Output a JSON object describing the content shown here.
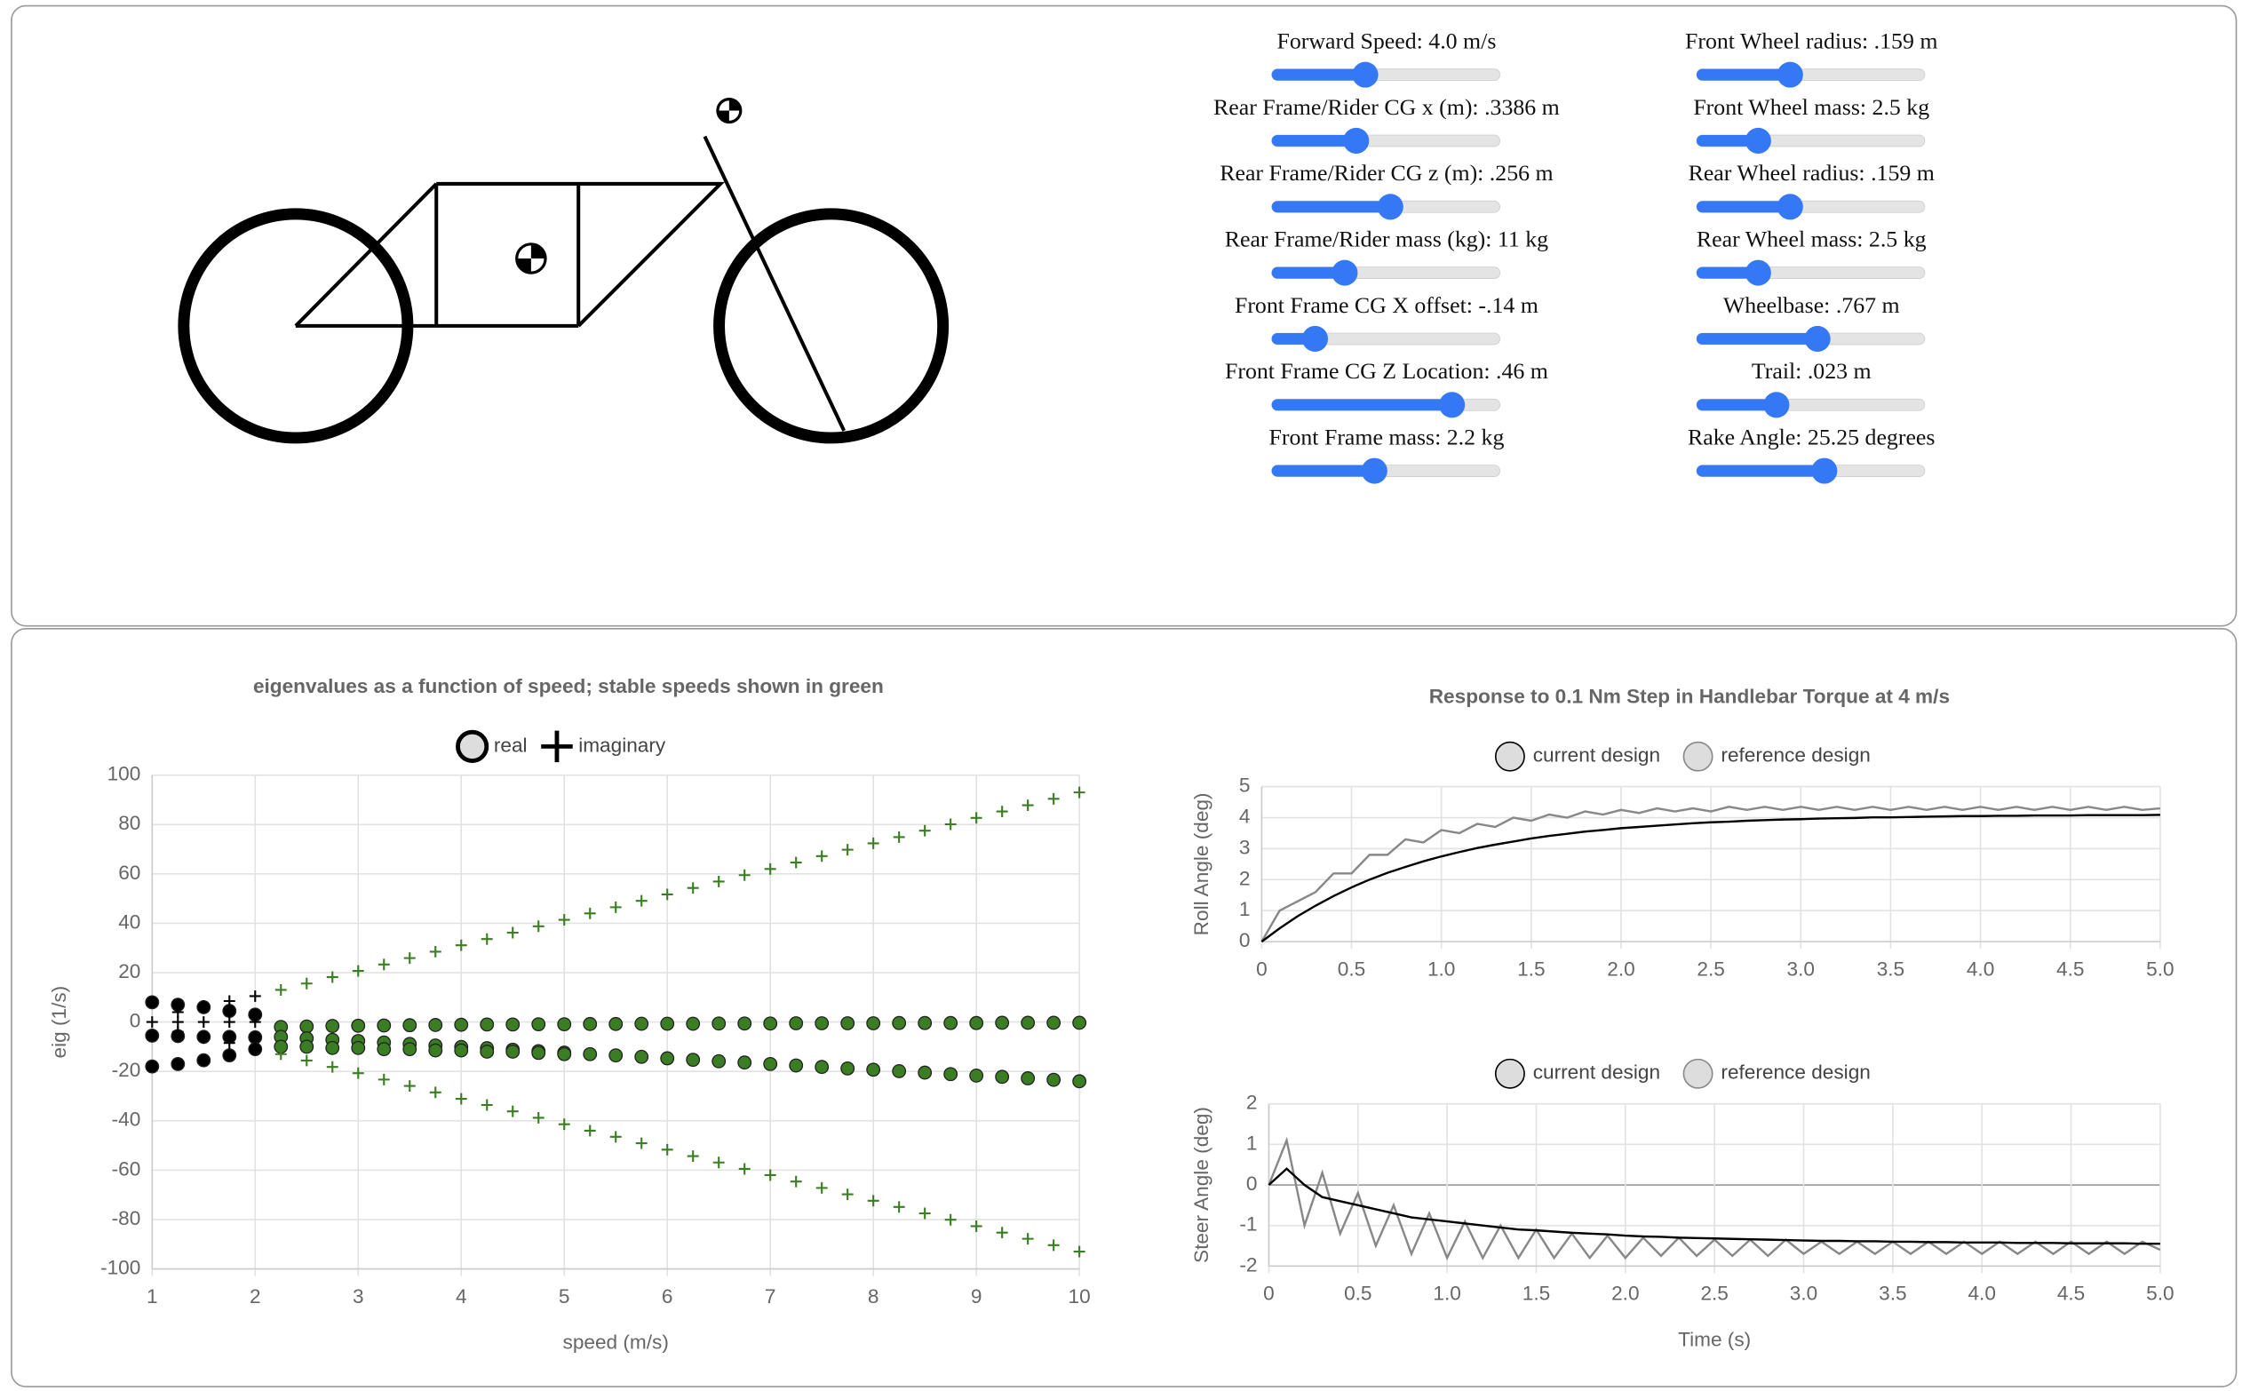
{
  "controls": [
    "Forward Speed: 4.0 m/s",
    "Rear Frame/Rider CG x (m): .3386 m",
    "Rear Frame/Rider CG z (m): .256 m",
    "Rear Frame/Rider mass (kg): 11 kg",
    "Front Frame CG X offset: -.14 m",
    "Front Frame CG Z Location: .46 m",
    "Front Frame mass: 2.2 kg",
    "Front Wheel radius: .159 m",
    "Front Wheel mass: 2.5 kg",
    "Rear Wheel radius: .159 m",
    "Rear Wheel mass: 2.5 kg",
    "Wheelbase: .767 m",
    "Trail: .023 m",
    "Rake Angle: 25.25 degrees"
  ],
  "eigen_chart": {
    "type": "scatter",
    "title": "eigenvalues as a function of speed; stable speeds shown in green",
    "x_label": "speed (m/s)",
    "y_label": "eig (1/s)",
    "legend": [
      {
        "name": "real",
        "marker": "circle"
      },
      {
        "name": "imaginary",
        "marker": "plus"
      }
    ],
    "xlim": [
      1,
      10
    ],
    "xticks": [
      1,
      2,
      3,
      4,
      5,
      6,
      7,
      8,
      9,
      10
    ],
    "ylim": [
      -100,
      100
    ],
    "yticks": [
      -100,
      -80,
      -60,
      -40,
      -20,
      0,
      20,
      40,
      60,
      80,
      100
    ],
    "grid": true,
    "series": [
      {
        "marker": "circle",
        "color": "#000000",
        "x": [
          1,
          1.25,
          1.5,
          1.75,
          2
        ],
        "values": [
          8,
          7,
          6,
          4.5,
          3
        ]
      },
      {
        "marker": "circle",
        "color": "#000000",
        "x": [
          1,
          1.25,
          1.5,
          1.75,
          2
        ],
        "values": [
          -5.5,
          -5.7,
          -6,
          -6,
          -6.2
        ]
      },
      {
        "marker": "circle",
        "color": "#000000",
        "x": [
          1,
          1.25,
          1.5,
          1.75,
          2
        ],
        "values": [
          -18,
          -17,
          -15.5,
          -13.5,
          -11
        ]
      },
      {
        "marker": "plus",
        "color": "#000000",
        "x": [
          1,
          1.25,
          1.5,
          1.75,
          2
        ],
        "values": [
          0,
          0,
          0,
          0,
          0
        ]
      },
      {
        "marker": "plus",
        "color": "#000000",
        "x": [
          1,
          1.25,
          1.5,
          1.75,
          2
        ],
        "values": [
          null,
          4,
          6.5,
          8.5,
          10.5
        ]
      },
      {
        "marker": "plus",
        "color": "#000000",
        "x": [
          1,
          1.25,
          1.5,
          1.75,
          2
        ],
        "values": [
          null,
          -4,
          -6.5,
          -8.5,
          -10.5
        ]
      },
      {
        "marker": "circle",
        "color": "#3a7d22",
        "x": [
          2.25,
          2.5,
          2.75,
          3,
          3.25,
          3.5,
          3.75,
          4,
          4.25,
          4.5,
          4.75,
          5,
          5.25,
          5.5,
          5.75,
          6,
          6.25,
          6.5,
          6.75,
          7,
          7.25,
          7.5,
          7.75,
          8,
          8.25,
          8.5,
          8.75,
          9,
          9.25,
          9.5,
          9.75,
          10
        ],
        "values": [
          -2,
          -1.8,
          -1.6,
          -1.5,
          -1.4,
          -1.3,
          -1.2,
          -1.1,
          -1,
          -1,
          -0.9,
          -0.9,
          -0.8,
          -0.8,
          -0.7,
          -0.7,
          -0.7,
          -0.6,
          -0.6,
          -0.6,
          -0.5,
          -0.5,
          -0.5,
          -0.5,
          -0.4,
          -0.4,
          -0.4,
          -0.4,
          -0.3,
          -0.3,
          -0.3,
          -0.3
        ]
      },
      {
        "marker": "circle",
        "color": "#3a7d22",
        "x": [
          2.25,
          2.5,
          2.75,
          3,
          3.25,
          3.5,
          3.75,
          4,
          4.25,
          4.5,
          4.75,
          5,
          5.25,
          5.5,
          5.75,
          6,
          6.25,
          6.5,
          6.75,
          7,
          7.25,
          7.5,
          7.75,
          8,
          8.25,
          8.5,
          8.75,
          9,
          9.25,
          9.5,
          9.75,
          10
        ],
        "values": [
          -6,
          -6.6,
          -7.2,
          -7.7,
          -8.3,
          -8.9,
          -9.5,
          -10.1,
          -10.6,
          -11.2,
          -11.8,
          -12.4,
          -13,
          -13.5,
          -14.1,
          -14.7,
          -15.3,
          -15.9,
          -16.4,
          -17,
          -17.6,
          -18.2,
          -18.8,
          -19.3,
          -19.9,
          -20.5,
          -21.1,
          -21.7,
          -22.2,
          -22.8,
          -23.4,
          -24
        ]
      },
      {
        "marker": "circle",
        "color": "#3a7d22",
        "x": [
          2.25,
          2.5,
          2.75,
          3,
          3.25,
          3.5,
          3.75,
          4,
          4.25,
          4.5,
          4.75,
          5,
          5.25,
          5.5,
          5.75,
          6,
          6.25,
          6.5,
          6.75,
          7,
          7.25,
          7.5,
          7.75,
          8,
          8.25,
          8.5,
          8.75,
          9,
          9.25,
          9.5,
          9.75,
          10
        ],
        "values": [
          -10,
          -10,
          -10.5,
          -10.5,
          -11,
          -11,
          -11.5,
          -11.5,
          -12,
          -12,
          -12.5,
          -13,
          null,
          null,
          null,
          null,
          null,
          null,
          null,
          null,
          null,
          null,
          null,
          null,
          null,
          null,
          null,
          null,
          null,
          null,
          null,
          null
        ]
      },
      {
        "marker": "plus",
        "color": "#3a7d22",
        "x": [
          2.25,
          2.5,
          2.75,
          3,
          3.25,
          3.5,
          3.75,
          4,
          4.25,
          4.5,
          4.75,
          5,
          5.25,
          5.5,
          5.75,
          6,
          6.25,
          6.5,
          6.75,
          7,
          7.25,
          7.5,
          7.75,
          8,
          8.25,
          8.5,
          8.75,
          9,
          9.25,
          9.5,
          9.75,
          10
        ],
        "values": [
          13,
          15.6,
          18.2,
          20.7,
          23.3,
          25.9,
          28.5,
          31.1,
          33.6,
          36.2,
          38.8,
          41.4,
          44,
          46.5,
          49.1,
          51.7,
          54.3,
          56.9,
          59.5,
          62,
          64.6,
          67.2,
          69.8,
          72.4,
          74.9,
          77.5,
          80.1,
          82.7,
          85.3,
          87.8,
          90.4,
          93
        ]
      },
      {
        "marker": "plus",
        "color": "#3a7d22",
        "x": [
          2.25,
          2.5,
          2.75,
          3,
          3.25,
          3.5,
          3.75,
          4,
          4.25,
          4.5,
          4.75,
          5,
          5.25,
          5.5,
          5.75,
          6,
          6.25,
          6.5,
          6.75,
          7,
          7.25,
          7.5,
          7.75,
          8,
          8.25,
          8.5,
          8.75,
          9,
          9.25,
          9.5,
          9.75,
          10
        ],
        "values": [
          -13,
          -15.6,
          -18.2,
          -20.7,
          -23.3,
          -25.9,
          -28.5,
          -31.1,
          -33.6,
          -36.2,
          -38.8,
          -41.4,
          -44,
          -46.5,
          -49.1,
          -51.7,
          -54.3,
          -56.9,
          -59.5,
          -62,
          -64.6,
          -67.2,
          -69.8,
          -72.4,
          -74.9,
          -77.5,
          -80.1,
          -82.7,
          -85.3,
          -87.8,
          -90.4,
          -93
        ]
      }
    ]
  },
  "roll_chart": {
    "type": "line",
    "title": "Response to 0.1 Nm Step in Handlebar Torque at 4 m/s",
    "y_label": "Roll Angle (deg)",
    "x": [
      0,
      0.1,
      0.2,
      0.3,
      0.4,
      0.5,
      0.6,
      0.7,
      0.8,
      0.9,
      1,
      1.1,
      1.2,
      1.3,
      1.4,
      1.5,
      1.6,
      1.7,
      1.8,
      1.9,
      2,
      2.1,
      2.2,
      2.3,
      2.4,
      2.5,
      2.6,
      2.7,
      2.8,
      2.9,
      3,
      3.1,
      3.2,
      3.3,
      3.4,
      3.5,
      3.6,
      3.7,
      3.8,
      3.9,
      4,
      4.1,
      4.2,
      4.3,
      4.4,
      4.5,
      4.6,
      4.7,
      4.8,
      4.9,
      5
    ],
    "xlim": [
      0,
      5
    ],
    "xticks": [
      0,
      0.5,
      {
        "value": 1,
        "label": "1.0"
      },
      1.5,
      {
        "value": 2,
        "label": "2.0"
      },
      2.5,
      {
        "value": 3,
        "label": "3.0"
      },
      3.5,
      {
        "value": 4,
        "label": "4.0"
      },
      4.5,
      {
        "value": 5,
        "label": "5.0"
      }
    ],
    "ylim": [
      0,
      5
    ],
    "yticks": [
      0,
      1,
      2,
      3,
      4,
      5
    ],
    "grid": true,
    "series": [
      {
        "name": "current design",
        "color": "#000000",
        "values": [
          0,
          0.43,
          0.82,
          1.16,
          1.47,
          1.75,
          2.0,
          2.22,
          2.41,
          2.59,
          2.75,
          2.89,
          3.02,
          3.13,
          3.23,
          3.33,
          3.41,
          3.48,
          3.55,
          3.6,
          3.66,
          3.7,
          3.74,
          3.78,
          3.82,
          3.85,
          3.87,
          3.9,
          3.92,
          3.94,
          3.95,
          3.97,
          3.98,
          3.99,
          4.01,
          4.01,
          4.02,
          4.03,
          4.04,
          4.05,
          4.05,
          4.06,
          4.06,
          4.07,
          4.07,
          4.07,
          4.08,
          4.08,
          4.08,
          4.08,
          4.09
        ]
      },
      {
        "name": "reference design",
        "color": "#888888",
        "values": [
          0,
          1.0,
          1.3,
          1.6,
          2.2,
          2.2,
          2.8,
          2.8,
          3.3,
          3.2,
          3.6,
          3.5,
          3.8,
          3.7,
          4.0,
          3.9,
          4.1,
          4.0,
          4.2,
          4.1,
          4.25,
          4.15,
          4.3,
          4.2,
          4.3,
          4.2,
          4.35,
          4.25,
          4.35,
          4.25,
          4.35,
          4.25,
          4.35,
          4.25,
          4.35,
          4.25,
          4.35,
          4.25,
          4.35,
          4.25,
          4.35,
          4.25,
          4.35,
          4.25,
          4.35,
          4.25,
          4.35,
          4.25,
          4.35,
          4.25,
          4.3
        ]
      }
    ]
  },
  "steer_chart": {
    "type": "line",
    "y_label": "Steer Angle (deg)",
    "x_label": "Time (s)",
    "x": [
      0,
      0.1,
      0.2,
      0.3,
      0.4,
      0.5,
      0.6,
      0.7,
      0.8,
      0.9,
      1,
      1.1,
      1.2,
      1.3,
      1.4,
      1.5,
      1.6,
      1.7,
      1.8,
      1.9,
      2,
      2.1,
      2.2,
      2.3,
      2.4,
      2.5,
      2.6,
      2.7,
      2.8,
      2.9,
      3,
      3.1,
      3.2,
      3.3,
      3.4,
      3.5,
      3.6,
      3.7,
      3.8,
      3.9,
      4,
      4.1,
      4.2,
      4.3,
      4.4,
      4.5,
      4.6,
      4.7,
      4.8,
      4.9,
      5
    ],
    "xlim": [
      0,
      5
    ],
    "xticks": [
      0,
      0.5,
      {
        "value": 1,
        "label": "1.0"
      },
      1.5,
      {
        "value": 2,
        "label": "2.0"
      },
      2.5,
      {
        "value": 3,
        "label": "3.0"
      },
      3.5,
      {
        "value": 4,
        "label": "4.0"
      },
      4.5,
      {
        "value": 5,
        "label": "5.0"
      }
    ],
    "ylim": [
      -2,
      2
    ],
    "yticks": [
      -2,
      -1,
      0,
      1,
      2
    ],
    "grid": true,
    "series": [
      {
        "name": "current design",
        "color": "#000000",
        "values": [
          0,
          0.4,
          0,
          -0.3,
          -0.4,
          -0.5,
          -0.6,
          -0.7,
          -0.8,
          -0.85,
          -0.9,
          -0.95,
          -1.0,
          -1.05,
          -1.1,
          -1.12,
          -1.15,
          -1.18,
          -1.2,
          -1.22,
          -1.25,
          -1.27,
          -1.28,
          -1.3,
          -1.31,
          -1.32,
          -1.33,
          -1.34,
          -1.35,
          -1.36,
          -1.37,
          -1.38,
          -1.38,
          -1.39,
          -1.39,
          -1.4,
          -1.4,
          -1.41,
          -1.41,
          -1.42,
          -1.42,
          -1.42,
          -1.43,
          -1.43,
          -1.43,
          -1.44,
          -1.44,
          -1.44,
          -1.44,
          -1.45,
          -1.45
        ]
      },
      {
        "name": "reference design",
        "color": "#888888",
        "values": [
          0,
          1.1,
          -1.0,
          0.3,
          -1.2,
          -0.2,
          -1.5,
          -0.5,
          -1.7,
          -0.7,
          -1.8,
          -0.9,
          -1.8,
          -1.0,
          -1.8,
          -1.1,
          -1.8,
          -1.2,
          -1.8,
          -1.25,
          -1.8,
          -1.3,
          -1.75,
          -1.3,
          -1.75,
          -1.35,
          -1.75,
          -1.35,
          -1.75,
          -1.35,
          -1.7,
          -1.4,
          -1.7,
          -1.4,
          -1.7,
          -1.4,
          -1.7,
          -1.4,
          -1.7,
          -1.4,
          -1.7,
          -1.4,
          -1.7,
          -1.4,
          -1.7,
          -1.4,
          -1.7,
          -1.4,
          -1.7,
          -1.4,
          -1.6
        ]
      }
    ]
  }
}
